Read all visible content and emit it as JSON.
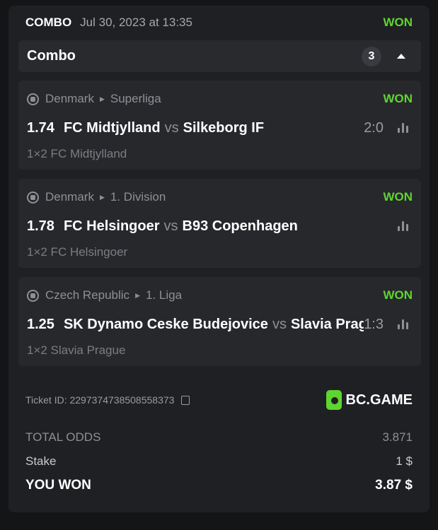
{
  "header": {
    "type": "COMBO",
    "date": "Jul 30, 2023 at 13:35",
    "status": "WON"
  },
  "combo": {
    "label": "Combo",
    "count": "3"
  },
  "legs": [
    {
      "country": "Denmark",
      "league": "Superliga",
      "status": "WON",
      "odds": "1.74",
      "home": "FC Midtjylland",
      "vs": "vs",
      "away": "Silkeborg IF",
      "score": "2:0",
      "market": "1×2 FC Midtjylland"
    },
    {
      "country": "Denmark",
      "league": "1. Division",
      "status": "WON",
      "odds": "1.78",
      "home": "FC Helsingoer",
      "vs": "vs",
      "away": "B93 Copenhagen",
      "score": "",
      "market": "1×2 FC Helsingoer"
    },
    {
      "country": "Czech Republic",
      "league": "1. Liga",
      "status": "WON",
      "odds": "1.25",
      "home": "SK Dynamo Ceske Budejovice",
      "vs": "vs",
      "away": "Slavia Prague",
      "score": "1:3",
      "market": "1×2 Slavia Prague"
    }
  ],
  "footer": {
    "ticket": "Ticket ID: 2297374738508558373",
    "brand": "BC.GAME",
    "total_odds_label": "TOTAL ODDS",
    "total_odds": "3.871",
    "stake_label": "Stake",
    "stake": "1 $",
    "won_label": "YOU WON",
    "won": "3.87 $"
  },
  "colors": {
    "accent": "#5fd52f"
  }
}
